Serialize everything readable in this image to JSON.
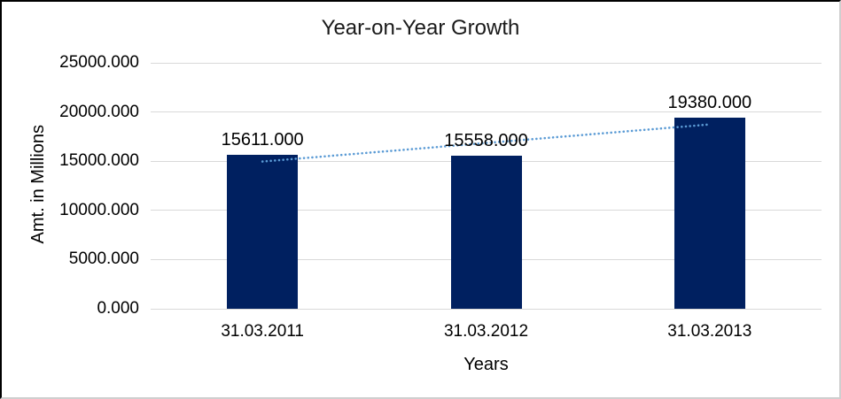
{
  "chart_data": {
    "type": "bar",
    "title": "Year-on-Year Growth",
    "xlabel": "Years",
    "ylabel": "Amt. in Millions",
    "categories": [
      "31.03.2011",
      "31.03.2012",
      "31.03.2013"
    ],
    "values": [
      15611.0,
      15558.0,
      19380.0
    ],
    "data_labels": [
      "15611.000",
      "15558.000",
      "19380.000"
    ],
    "y_axis": {
      "min": 0,
      "max": 25000,
      "tick_step": 5000,
      "tick_labels": [
        "25000.000",
        "20000.000",
        "15000.000",
        "10000.000",
        "5000.000",
        "0.000"
      ]
    },
    "grid": true,
    "legend": "none",
    "colors": {
      "bar": "#002060",
      "trendline": "#5B9BD5",
      "gridline": "#D9D9D9",
      "text": "#000000"
    },
    "trendline": {
      "type": "linear",
      "style": "dotted"
    }
  }
}
